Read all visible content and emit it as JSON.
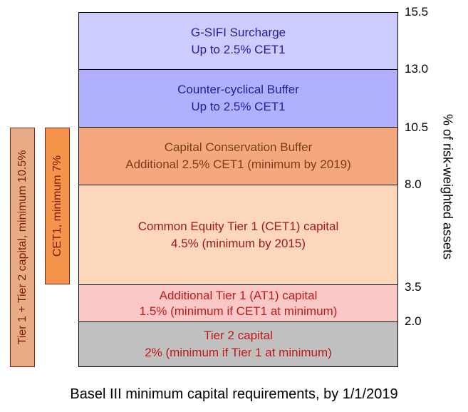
{
  "layers": [
    {
      "line1": "G-SIFI Surcharge",
      "line2": "Up to 2.5% CET1"
    },
    {
      "line1": "Counter-cyclical Buffer",
      "line2": "Up to 2.5% CET1"
    },
    {
      "line1": "Capital Conservation Buffer",
      "line2": "Additional 2.5% CET1 (minimum by 2019)"
    },
    {
      "line1": "Common Equity Tier 1 (CET1) capital",
      "line2": "4.5% (minimum by 2015)"
    },
    {
      "line1": "Additional Tier 1 (AT1) capital",
      "line2": "1.5% (minimum if CET1 at minimum)"
    },
    {
      "line1": "Tier 2 capital",
      "line2": "2% (minimum if Tier 1 at minimum)"
    }
  ],
  "ticks": [
    "15.5",
    "13.0",
    "10.5",
    "8.0",
    "3.5",
    "2.0"
  ],
  "axis_label": "% of risk-weighted assets",
  "brackets": {
    "total": "Tier 1 + Tier 2 capital, minimum 10.5%",
    "cet1": "CET1, minimum 7%"
  },
  "caption": "Basel III minimum capital requirements, by 1/1/2019",
  "colors": {
    "gsifi": "#ccccff",
    "countercyclical": "#b0b0ff",
    "conservation": "#f5a87e",
    "cet1": "#fcd7ba",
    "at1": "#fbc8c8",
    "tier2": "#c0c0c0"
  }
}
